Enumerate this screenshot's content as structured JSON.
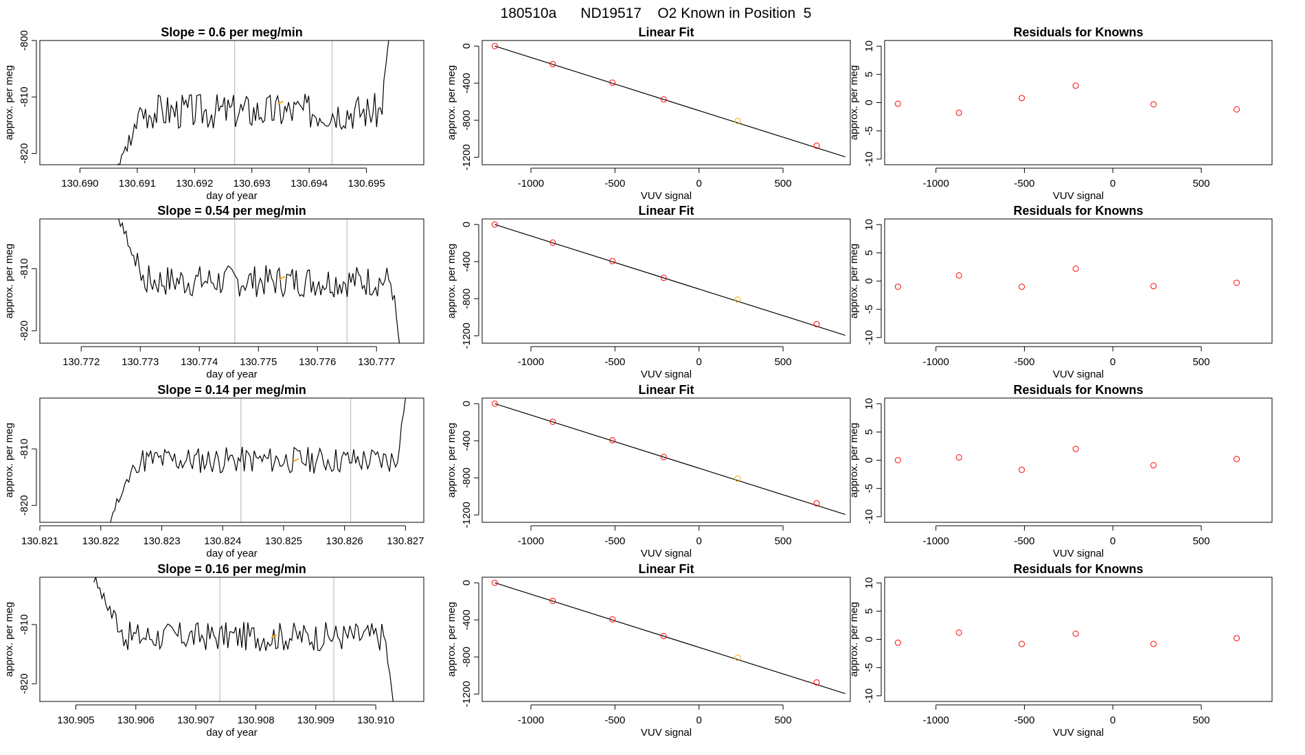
{
  "page": {
    "title": "180510a      ND19517    O2 Known in Position  5"
  },
  "colors": {
    "trace": "#000000",
    "gridline": "#bebebe",
    "highlight": "#ffa500",
    "points": "#ff0000",
    "fit_line": "#000000"
  },
  "chart_data": [
    {
      "type": "line",
      "row": 0,
      "col": 0,
      "title": "Slope =  0.6  per meg/min",
      "xlabel": "day of year",
      "ylabel": "approx. per meg",
      "xlim": [
        130.6893,
        130.696
      ],
      "ylim": [
        -822,
        -800
      ],
      "xticks": [
        130.69,
        130.691,
        130.692,
        130.693,
        130.694,
        130.695
      ],
      "xtick_labels": [
        "130.690",
        "130.691",
        "130.692",
        "130.693",
        "130.694",
        "130.695"
      ],
      "yticks": [
        -800,
        -810,
        -820
      ],
      "ytick_labels": [
        "-800",
        "-810",
        "-820"
      ],
      "vlines": [
        130.6927,
        130.6944
      ],
      "trace_start": 130.6906,
      "trace_end": 130.6954,
      "trace_level": -812.5,
      "trace_noise": 3.2,
      "trace_start_value": -824,
      "trace_end_value": -799,
      "seed": 3,
      "highlight_point": [
        130.6935,
        -811
      ]
    },
    {
      "type": "line",
      "row": 1,
      "col": 0,
      "title": "Slope =  0.54  per meg/min",
      "xlabel": "day of year",
      "ylabel": "approx. per meg",
      "xlim": [
        130.7713,
        130.7778
      ],
      "ylim": [
        -822,
        -802
      ],
      "xticks": [
        130.772,
        130.773,
        130.774,
        130.775,
        130.776,
        130.777
      ],
      "xtick_labels": [
        "130.772",
        "130.773",
        "130.774",
        "130.775",
        "130.776",
        "130.777"
      ],
      "yticks": [
        -810,
        -820
      ],
      "ytick_labels": [
        "-810",
        "-820"
      ],
      "vlines": [
        130.7746,
        130.7765
      ],
      "trace_start": 130.7726,
      "trace_end": 130.7774,
      "trace_level": -812,
      "trace_noise": 2.6,
      "trace_start_value": -801,
      "trace_end_value": -823,
      "seed": 7,
      "highlight_point": [
        130.7754,
        -811.5
      ]
    },
    {
      "type": "line",
      "row": 2,
      "col": 0,
      "title": "Slope =  0.14  per meg/min",
      "xlabel": "day of year",
      "ylabel": "approx. per meg",
      "xlim": [
        130.821,
        130.8273
      ],
      "ylim": [
        -823,
        -801
      ],
      "xticks": [
        130.821,
        130.822,
        130.823,
        130.824,
        130.825,
        130.826,
        130.827
      ],
      "xtick_labels": [
        "130.821",
        "130.822",
        "130.823",
        "130.824",
        "130.825",
        "130.826",
        "130.827"
      ],
      "yticks": [
        -810,
        -820
      ],
      "ytick_labels": [
        "-810",
        "-820"
      ],
      "vlines": [
        130.8243,
        130.8261
      ],
      "trace_start": 130.8221,
      "trace_end": 130.827,
      "trace_level": -812,
      "trace_noise": 2.4,
      "trace_start_value": -824,
      "trace_end_value": -801,
      "seed": 11,
      "highlight_point": [
        130.8252,
        -812
      ]
    },
    {
      "type": "line",
      "row": 3,
      "col": 0,
      "title": "Slope =  0.16  per meg/min",
      "xlabel": "day of year",
      "ylabel": "approx. per meg",
      "xlim": [
        130.9044,
        130.9108
      ],
      "ylim": [
        -823,
        -802
      ],
      "xticks": [
        130.905,
        130.906,
        130.907,
        130.908,
        130.909,
        130.91
      ],
      "xtick_labels": [
        "130.905",
        "130.906",
        "130.907",
        "130.908",
        "130.909",
        "130.910"
      ],
      "yticks": [
        -810,
        -820
      ],
      "ytick_labels": [
        "-810",
        "-820"
      ],
      "vlines": [
        130.9074,
        130.9093
      ],
      "trace_start": 130.9053,
      "trace_end": 130.9103,
      "trace_level": -812,
      "trace_noise": 2.5,
      "trace_start_value": -802,
      "trace_end_value": -824,
      "seed": 17,
      "highlight_point": [
        130.9083,
        -812
      ]
    },
    {
      "type": "scatter",
      "row": 0,
      "col": 1,
      "title": "Linear Fit",
      "xlabel": "VUV signal",
      "ylabel": "approx. per meg",
      "xlim": [
        -1290,
        900
      ],
      "ylim": [
        -1280,
        60
      ],
      "xticks": [
        -1000,
        -500,
        0,
        500
      ],
      "xtick_labels": [
        "-1000",
        "-500",
        "0",
        "500"
      ],
      "yticks": [
        0,
        -400,
        -800,
        -1200
      ],
      "ytick_labels": [
        "0",
        "-400",
        "-800",
        "-1200"
      ],
      "x": [
        -1215,
        -870,
        -515,
        -210,
        230,
        700
      ],
      "y": [
        0,
        -195,
        -395,
        -575,
        -808,
        -1075
      ],
      "highlight_index": 4,
      "fit_line": [
        [
          -1215,
          0
        ],
        [
          870,
          -1195
        ]
      ]
    },
    {
      "type": "scatter",
      "row": 1,
      "col": 1,
      "title": "Linear Fit",
      "xlabel": "VUV signal",
      "ylabel": "approx. per meg",
      "xlim": [
        -1290,
        900
      ],
      "ylim": [
        -1280,
        60
      ],
      "xticks": [
        -1000,
        -500,
        0,
        500
      ],
      "xtick_labels": [
        "-1000",
        "-500",
        "0",
        "500"
      ],
      "yticks": [
        0,
        -400,
        -800,
        -1200
      ],
      "ytick_labels": [
        "0",
        "-400",
        "-800",
        "-1200"
      ],
      "x": [
        -1215,
        -870,
        -515,
        -210,
        230,
        700
      ],
      "y": [
        0,
        -195,
        -395,
        -575,
        -808,
        -1075
      ],
      "highlight_index": 4,
      "fit_line": [
        [
          -1215,
          0
        ],
        [
          870,
          -1195
        ]
      ]
    },
    {
      "type": "scatter",
      "row": 2,
      "col": 1,
      "title": "Linear Fit",
      "xlabel": "VUV signal",
      "ylabel": "approx. per meg",
      "xlim": [
        -1290,
        900
      ],
      "ylim": [
        -1280,
        60
      ],
      "xticks": [
        -1000,
        -500,
        0,
        500
      ],
      "xtick_labels": [
        "-1000",
        "-500",
        "0",
        "500"
      ],
      "yticks": [
        0,
        -400,
        -800,
        -1200
      ],
      "ytick_labels": [
        "0",
        "-400",
        "-800",
        "-1200"
      ],
      "x": [
        -1215,
        -870,
        -515,
        -210,
        230,
        700
      ],
      "y": [
        0,
        -195,
        -395,
        -575,
        -808,
        -1075
      ],
      "highlight_index": 4,
      "fit_line": [
        [
          -1215,
          0
        ],
        [
          870,
          -1195
        ]
      ]
    },
    {
      "type": "scatter",
      "row": 3,
      "col": 1,
      "title": "Linear Fit",
      "xlabel": "VUV signal",
      "ylabel": "approx. per meg",
      "xlim": [
        -1290,
        900
      ],
      "ylim": [
        -1280,
        60
      ],
      "xticks": [
        -1000,
        -500,
        0,
        500
      ],
      "xtick_labels": [
        "-1000",
        "-500",
        "0",
        "500"
      ],
      "yticks": [
        0,
        -400,
        -800,
        -1200
      ],
      "ytick_labels": [
        "0",
        "-400",
        "-800",
        "-1200"
      ],
      "x": [
        -1215,
        -870,
        -515,
        -210,
        230,
        700
      ],
      "y": [
        0,
        -195,
        -395,
        -575,
        -808,
        -1075
      ],
      "highlight_index": 4,
      "fit_line": [
        [
          -1215,
          0
        ],
        [
          870,
          -1195
        ]
      ]
    },
    {
      "type": "scatter",
      "row": 0,
      "col": 2,
      "title": "Residuals for Knowns",
      "xlabel": "VUV signal",
      "ylabel": "approx. per meg",
      "xlim": [
        -1290,
        900
      ],
      "ylim": [
        -11,
        11
      ],
      "xticks": [
        -1000,
        -500,
        0,
        500
      ],
      "xtick_labels": [
        "-1000",
        "-500",
        "0",
        "500"
      ],
      "yticks": [
        10,
        5,
        0,
        -5,
        -10
      ],
      "ytick_labels": [
        "10",
        "5",
        "0",
        "-5",
        "-10"
      ],
      "x": [
        -1215,
        -870,
        -515,
        -210,
        230,
        700
      ],
      "y": [
        -0.2,
        -1.8,
        0.8,
        3.0,
        -0.3,
        -1.2
      ]
    },
    {
      "type": "scatter",
      "row": 1,
      "col": 2,
      "title": "Residuals for Knowns",
      "xlabel": "VUV signal",
      "ylabel": "approx. per meg",
      "xlim": [
        -1290,
        900
      ],
      "ylim": [
        -11,
        11
      ],
      "xticks": [
        -1000,
        -500,
        0,
        500
      ],
      "xtick_labels": [
        "-1000",
        "-500",
        "0",
        "500"
      ],
      "yticks": [
        10,
        5,
        0,
        -5,
        -10
      ],
      "ytick_labels": [
        "10",
        "5",
        "0",
        "-5",
        "-10"
      ],
      "x": [
        -1215,
        -870,
        -515,
        -210,
        230,
        700
      ],
      "y": [
        -1.0,
        1.0,
        -1.0,
        2.2,
        -0.9,
        -0.3
      ]
    },
    {
      "type": "scatter",
      "row": 2,
      "col": 2,
      "title": "Residuals for Knowns",
      "xlabel": "VUV signal",
      "ylabel": "approx. per meg",
      "xlim": [
        -1290,
        900
      ],
      "ylim": [
        -11,
        11
      ],
      "xticks": [
        -1000,
        -500,
        0,
        500
      ],
      "xtick_labels": [
        "-1000",
        "-500",
        "0",
        "500"
      ],
      "yticks": [
        10,
        5,
        0,
        -5,
        -10
      ],
      "ytick_labels": [
        "10",
        "5",
        "0",
        "-5",
        "-10"
      ],
      "x": [
        -1215,
        -870,
        -515,
        -210,
        230,
        700
      ],
      "y": [
        0.0,
        0.5,
        -1.7,
        2.0,
        -0.9,
        0.2
      ]
    },
    {
      "type": "scatter",
      "row": 3,
      "col": 2,
      "title": "Residuals for Knowns",
      "xlabel": "VUV signal",
      "ylabel": "approx. per meg",
      "xlim": [
        -1290,
        900
      ],
      "ylim": [
        -11,
        11
      ],
      "xticks": [
        -1000,
        -500,
        0,
        500
      ],
      "xtick_labels": [
        "-1000",
        "-500",
        "0",
        "500"
      ],
      "yticks": [
        10,
        5,
        0,
        -5,
        -10
      ],
      "ytick_labels": [
        "10",
        "5",
        "0",
        "-5",
        "-10"
      ],
      "x": [
        -1215,
        -870,
        -515,
        -210,
        230,
        700
      ],
      "y": [
        -0.6,
        1.2,
        -0.8,
        1.0,
        -0.8,
        0.2
      ]
    }
  ]
}
